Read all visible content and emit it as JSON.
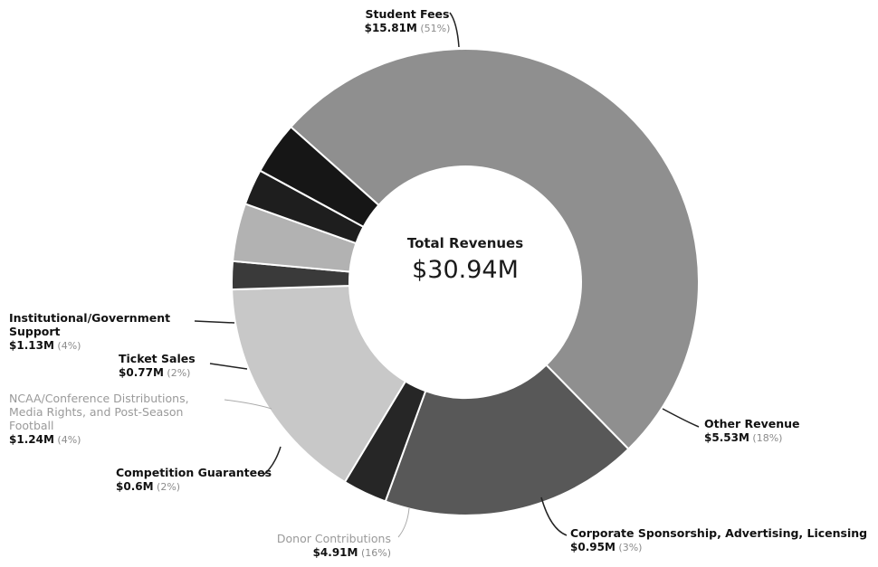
{
  "chart_data": {
    "type": "pie",
    "center_label": {
      "title": "Total Revenues",
      "value": "$30.94M"
    },
    "slices": [
      {
        "name": "Student Fees",
        "value": 15.81,
        "value_label": "$15.81M",
        "percent_label": "(51%)",
        "color": "#8f8f8f",
        "label_style": "bold"
      },
      {
        "name": "Other Revenue",
        "value": 5.53,
        "value_label": "$5.53M",
        "percent_label": "(18%)",
        "color": "#585858",
        "label_style": "bold"
      },
      {
        "name": "Corporate Sponsorship, Advertising, Licensing",
        "value": 0.95,
        "value_label": "$0.95M",
        "percent_label": "(3%)",
        "color": "#262626",
        "label_style": "bold"
      },
      {
        "name": "Donor Contributions",
        "value": 4.91,
        "value_label": "$4.91M",
        "percent_label": "(16%)",
        "color": "#c8c8c8",
        "label_style": "light"
      },
      {
        "name": "Competition Guarantees",
        "value": 0.6,
        "value_label": "$0.6M",
        "percent_label": "(2%)",
        "color": "#3a3a3a",
        "label_style": "bold"
      },
      {
        "name": "NCAA/Conference Distributions, Media Rights, and Post-Season Football",
        "value": 1.24,
        "value_label": "$1.24M",
        "percent_label": "(4%)",
        "color": "#b2b2b2",
        "label_style": "light"
      },
      {
        "name": "Ticket Sales",
        "value": 0.77,
        "value_label": "$0.77M",
        "percent_label": "(2%)",
        "color": "#1e1e1e",
        "label_style": "bold"
      },
      {
        "name": "Institutional/Government Support",
        "value": 1.13,
        "value_label": "$1.13M",
        "percent_label": "(4%)",
        "color": "#161616",
        "label_style": "bold"
      }
    ]
  }
}
